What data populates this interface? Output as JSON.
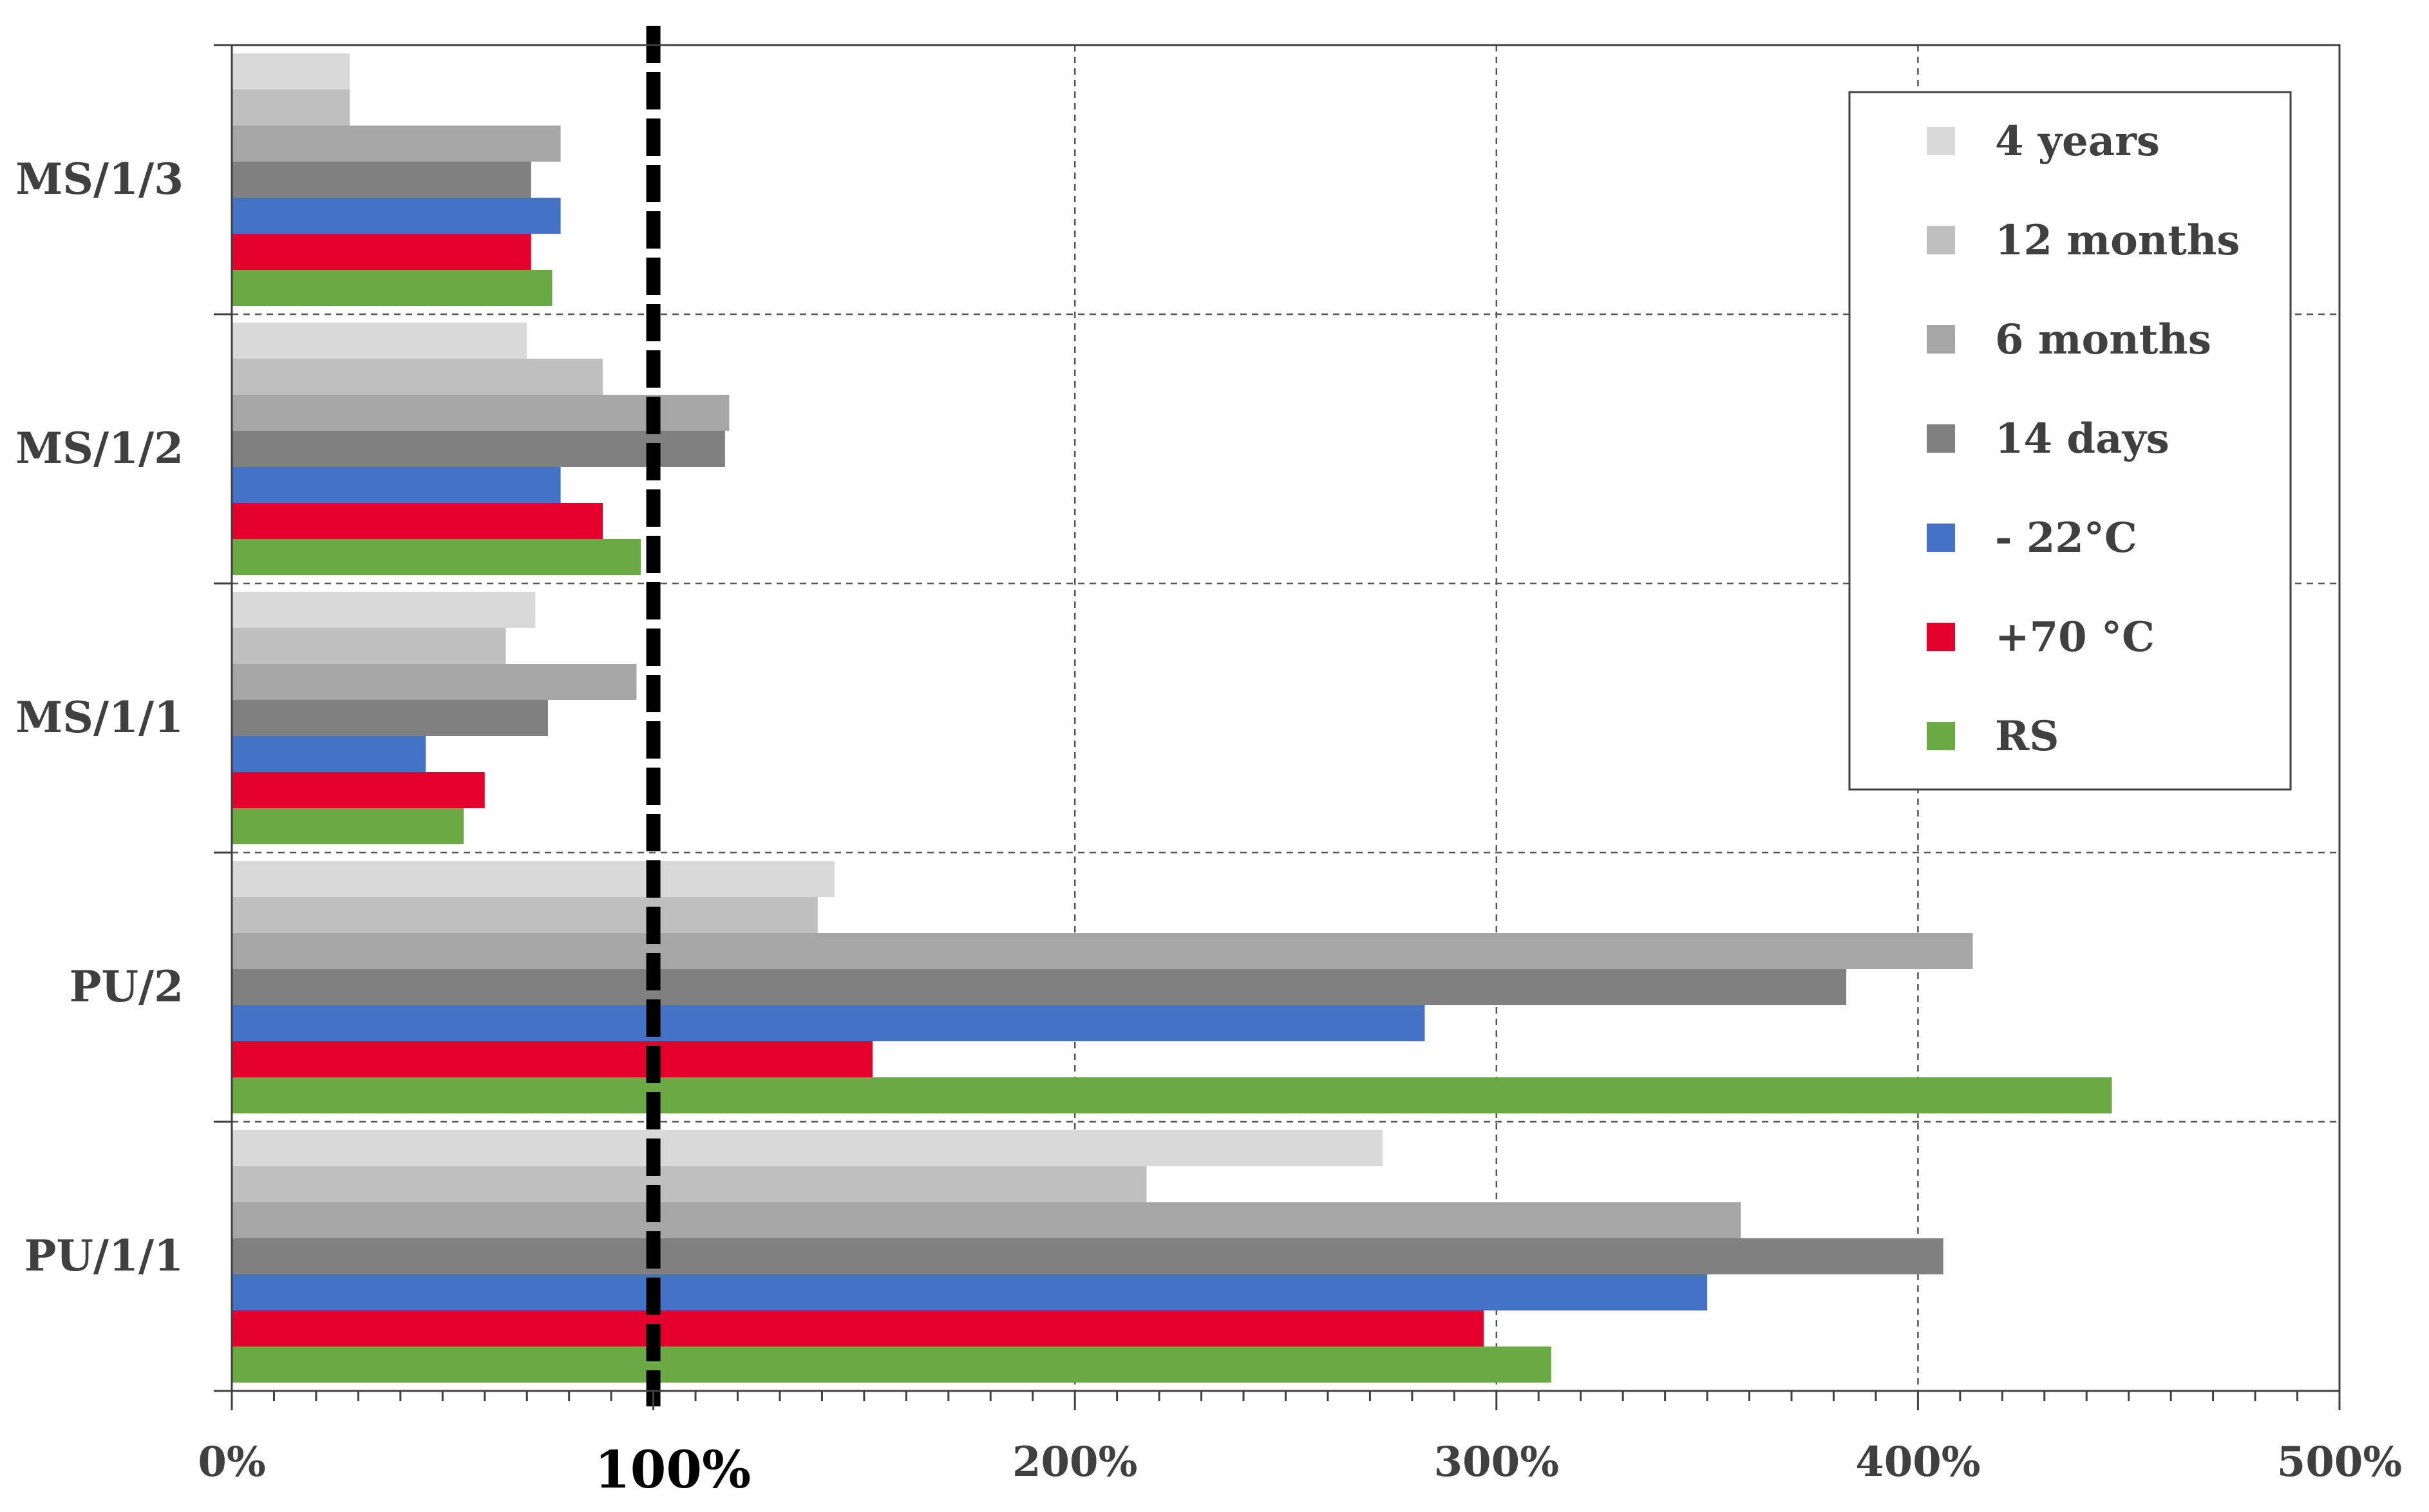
{
  "chart_data": {
    "type": "bar",
    "orientation": "horizontal",
    "categories": [
      "MS/1/3",
      "MS/1/2",
      "MS/1/1",
      "PU/2",
      "PU/1/1"
    ],
    "series": [
      {
        "name": "4 years",
        "color": "#d9d9d9",
        "values": [
          28,
          70,
          72,
          143,
          273
        ]
      },
      {
        "name": "12 months",
        "color": "#bfbfbf",
        "values": [
          28,
          88,
          65,
          139,
          217
        ]
      },
      {
        "name": "6 months",
        "color": "#a6a6a6",
        "values": [
          78,
          118,
          96,
          413,
          358
        ]
      },
      {
        "name": "14 days",
        "color": "#808080",
        "values": [
          71,
          117,
          75,
          383,
          406
        ]
      },
      {
        "name": "- 22°C",
        "color": "#4472c4",
        "values": [
          78,
          78,
          46,
          283,
          350
        ]
      },
      {
        "name": "+70 °C",
        "color": "#e4002b",
        "values": [
          71,
          88,
          60,
          152,
          297
        ]
      },
      {
        "name": "RS",
        "color": "#6aaa45",
        "values": [
          76,
          97,
          55,
          446,
          313
        ]
      }
    ],
    "xlim": [
      0,
      500
    ],
    "xticks": [
      {
        "value": 0,
        "label": "0%"
      },
      {
        "value": 100,
        "label": "100%"
      },
      {
        "value": 200,
        "label": "200%"
      },
      {
        "value": 300,
        "label": "300%"
      },
      {
        "value": 400,
        "label": "400%"
      },
      {
        "value": 500,
        "label": "500%"
      }
    ],
    "reference_line": {
      "value": 100,
      "style": "dashed",
      "color": "#000000"
    },
    "legend_position": "top-right",
    "grid": true,
    "title": "",
    "xlabel": "",
    "ylabel": ""
  }
}
